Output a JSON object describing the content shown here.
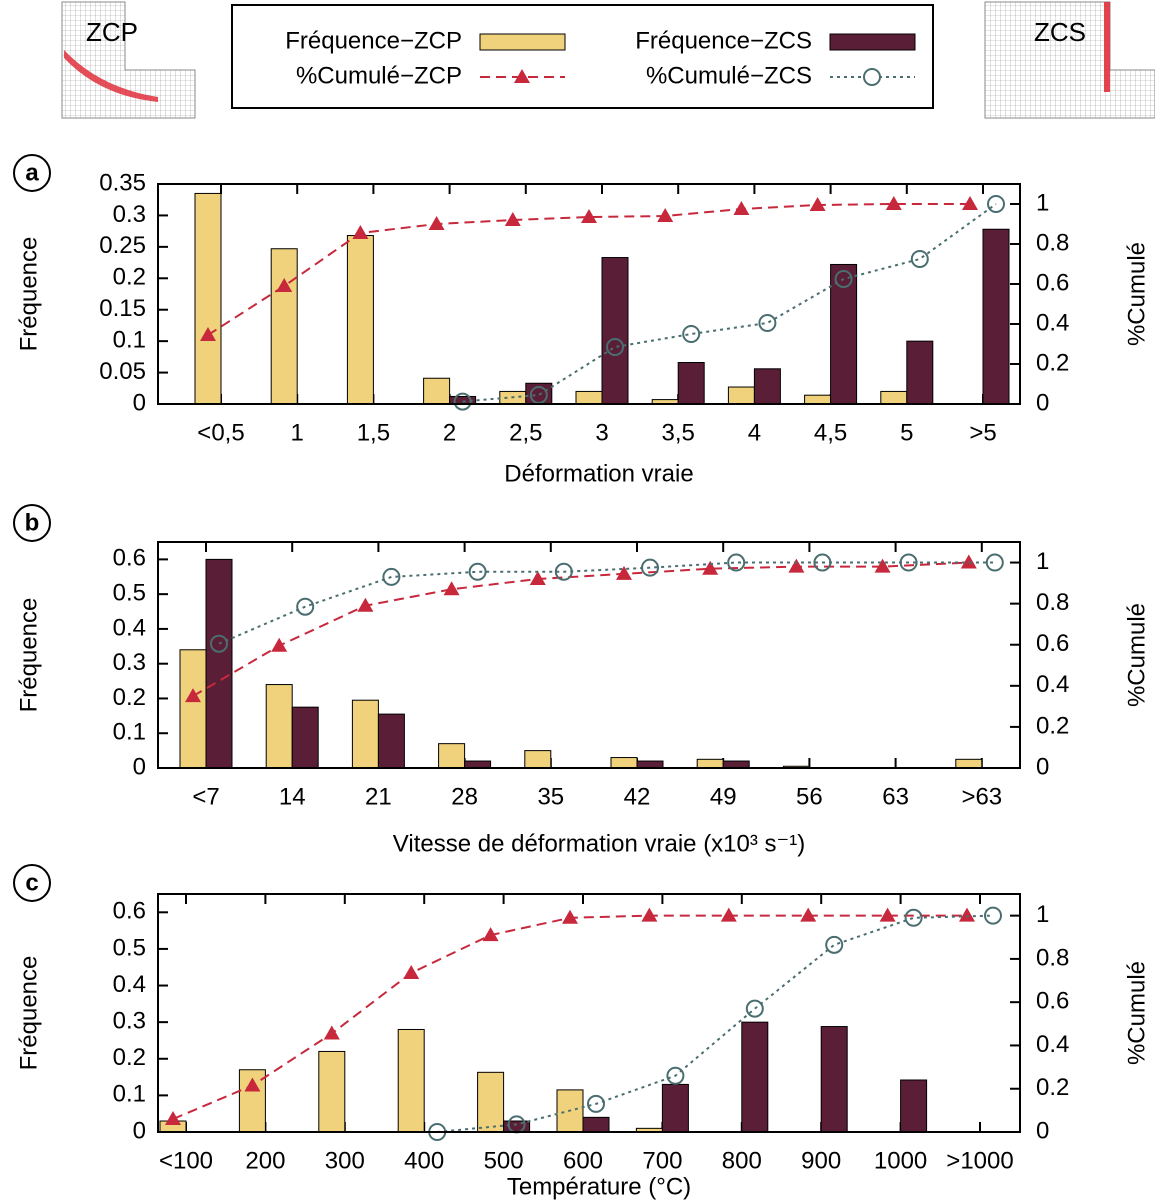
{
  "insets": [
    {
      "label": "ZCP"
    },
    {
      "label": "ZCS"
    }
  ],
  "chart_data": [
    {
      "type": "bar",
      "label": "a",
      "y_label": "Fréquence",
      "y2_label": "%Cumulé",
      "x_label": "Déformation vraie",
      "categories": [
        "<0,5",
        "1",
        "1,5",
        "2",
        "2,5",
        "3",
        "3,5",
        "4",
        "4,5",
        "5",
        ">5"
      ],
      "ylim": [
        0,
        0.35
      ],
      "yticks": [
        0,
        0.05,
        0.1,
        0.15,
        0.2,
        0.25,
        0.3,
        0.35
      ],
      "y2lim": [
        0,
        1.1
      ],
      "y2ticks": [
        0,
        0.2,
        0.4,
        0.6,
        0.8,
        1
      ],
      "series": [
        {
          "name": "Fréquence−ZCP",
          "color": "#f0d27c",
          "values": [
            0.335,
            0.247,
            0.268,
            0.041,
            0.02,
            0.02,
            0.007,
            0.027,
            0.014,
            0.02,
            0
          ]
        },
        {
          "name": "Fréquence−ZCS",
          "color": "#5a1f36",
          "values": [
            0,
            0,
            0,
            0.012,
            0.033,
            0.233,
            0.066,
            0.056,
            0.222,
            0.1,
            0.278
          ]
        },
        {
          "name": "%Cumulé−ZCP",
          "color": "#c8283c",
          "type": "line",
          "axis": "y2",
          "marker": "triangle",
          "values": [
            0.345,
            0.59,
            0.855,
            0.9,
            0.92,
            0.935,
            0.94,
            0.975,
            0.995,
            1,
            1
          ]
        },
        {
          "name": "%Cumulé−ZCS",
          "color": "#4a6e70",
          "type": "line",
          "axis": "y2",
          "marker": "circle",
          "values": [
            null,
            null,
            null,
            0.012,
            0.045,
            0.285,
            0.35,
            0.405,
            0.625,
            0.725,
            1
          ]
        }
      ]
    },
    {
      "type": "bar",
      "label": "b",
      "y_label": "Fréquence",
      "y2_label": "%Cumulé",
      "x_label": "Vitesse de déformation vraie (x10³ s⁻¹)",
      "categories": [
        "<7",
        "14",
        "21",
        "28",
        "35",
        "42",
        "49",
        "56",
        "63",
        ">63"
      ],
      "ylim": [
        0,
        0.65
      ],
      "yticks": [
        0,
        0.1,
        0.2,
        0.3,
        0.4,
        0.5,
        0.6
      ],
      "y2lim": [
        0,
        1.1
      ],
      "y2ticks": [
        0,
        0.2,
        0.4,
        0.6,
        0.8,
        1
      ],
      "series": [
        {
          "color": "#f0d27c",
          "values": [
            0.34,
            0.24,
            0.195,
            0.07,
            0.05,
            0.03,
            0.025,
            0.005,
            0,
            0.025
          ]
        },
        {
          "color": "#5a1f36",
          "values": [
            0.6,
            0.175,
            0.155,
            0.02,
            0,
            0.02,
            0.02,
            0,
            0,
            0
          ]
        },
        {
          "color": "#c8283c",
          "type": "line",
          "axis": "y2",
          "marker": "triangle",
          "values": [
            0.35,
            0.595,
            0.79,
            0.87,
            0.92,
            0.945,
            0.97,
            0.98,
            0.98,
            1
          ]
        },
        {
          "color": "#4a6e70",
          "type": "line",
          "axis": "y2",
          "marker": "circle",
          "values": [
            0.605,
            0.785,
            0.93,
            0.955,
            0.955,
            0.975,
            1,
            1,
            1,
            1
          ]
        }
      ]
    },
    {
      "type": "bar",
      "label": "c",
      "y_label": "Fréquence",
      "y2_label": "%Cumulé",
      "x_label": "Température (°C)",
      "categories": [
        "<100",
        "200",
        "300",
        "400",
        "500",
        "600",
        "700",
        "800",
        "900",
        "1000",
        ">1000"
      ],
      "ylim": [
        0,
        0.65
      ],
      "yticks": [
        0,
        0.1,
        0.2,
        0.3,
        0.4,
        0.5,
        0.6
      ],
      "y2lim": [
        0,
        1.1
      ],
      "y2ticks": [
        0,
        0.2,
        0.4,
        0.6,
        0.8,
        1
      ],
      "series": [
        {
          "color": "#f0d27c",
          "values": [
            0.03,
            0.17,
            0.22,
            0.28,
            0.163,
            0.115,
            0.01,
            0,
            0,
            0,
            0
          ]
        },
        {
          "color": "#5a1f36",
          "values": [
            0,
            0,
            0,
            0,
            0.03,
            0.04,
            0.13,
            0.3,
            0.288,
            0.142,
            0
          ]
        },
        {
          "color": "#c8283c",
          "type": "line",
          "axis": "y2",
          "marker": "triangle",
          "values": [
            0.06,
            0.215,
            0.455,
            0.735,
            0.91,
            0.99,
            1,
            1,
            1,
            1,
            1
          ]
        },
        {
          "color": "#4a6e70",
          "type": "line",
          "axis": "y2",
          "marker": "circle",
          "values": [
            null,
            null,
            null,
            0,
            0.035,
            0.13,
            0.26,
            0.57,
            0.865,
            0.99,
            1
          ]
        }
      ]
    }
  ]
}
